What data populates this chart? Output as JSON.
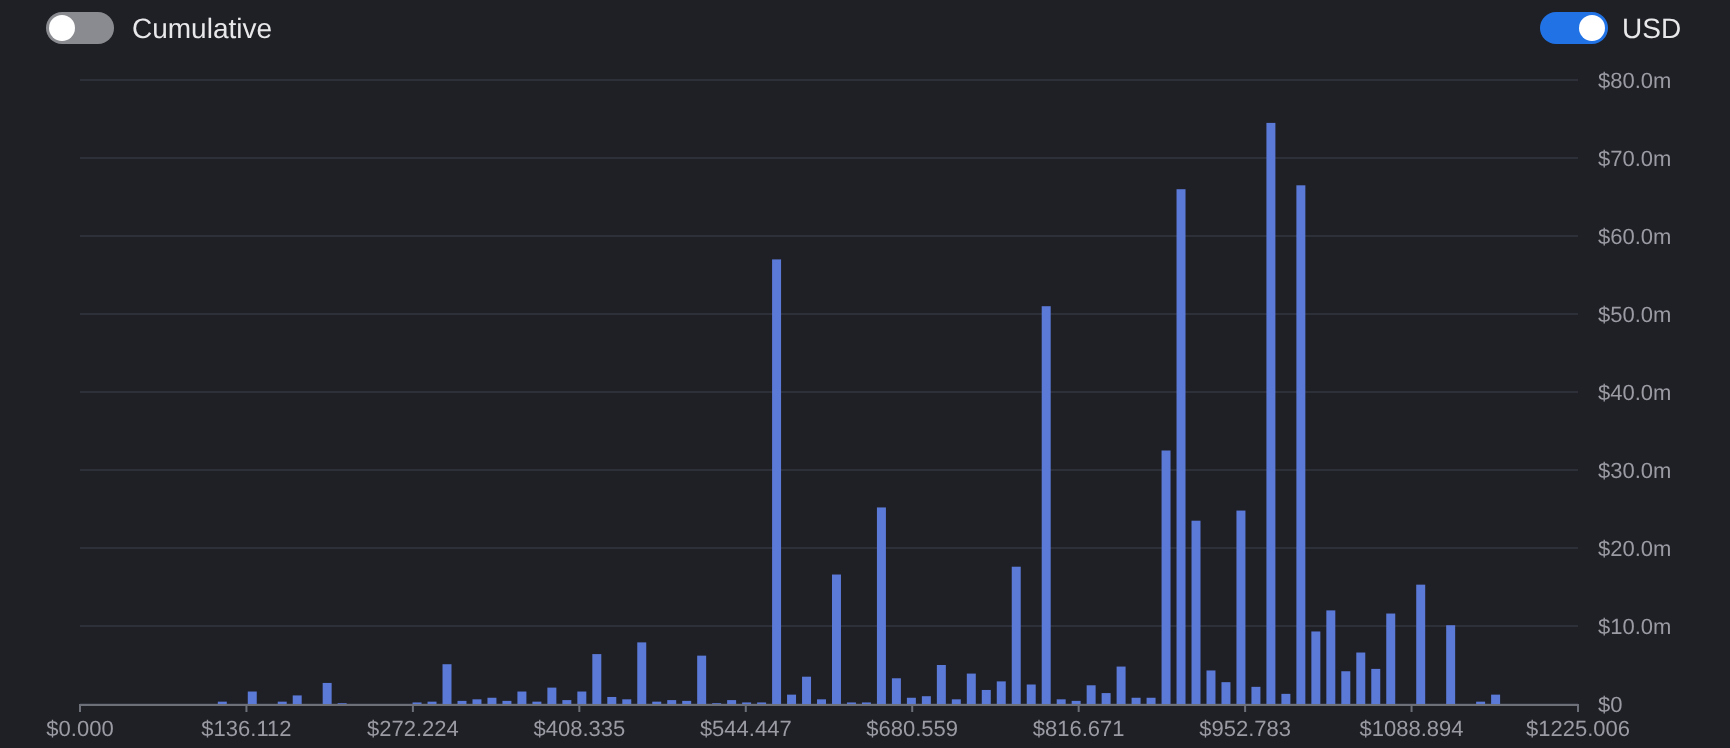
{
  "chart_data": {
    "type": "histogram",
    "bins": [
      0,
      12.25,
      24.5,
      36.75,
      49,
      61.25,
      73.5,
      85.75,
      98,
      110.25,
      122.5,
      134.75,
      147,
      159.25,
      171.5,
      183.75,
      196,
      208.25,
      220.5,
      232.75,
      245,
      257.25,
      269.5,
      281.75,
      294,
      306.25,
      318.5,
      330.75,
      343,
      355.25,
      367.5,
      379.75,
      392,
      404.25,
      416.5,
      428.75,
      441,
      453.25,
      465.5,
      477.75,
      490,
      502.25,
      514.5,
      526.75,
      539,
      551.25,
      563.5,
      575.75,
      588,
      600.25,
      612.5,
      624.75,
      637,
      649.25,
      661.5,
      673.75,
      686,
      698.25,
      710.5,
      722.75,
      735,
      747.25,
      759.5,
      771.75,
      784,
      796.25,
      808.5,
      820.75,
      833,
      845.25,
      857.5,
      869.75,
      882,
      894.25,
      906.5,
      918.75,
      931,
      943.25,
      955.5,
      967.75,
      980,
      992.25,
      1004.5,
      1016.75,
      1029,
      1041.25,
      1053.5,
      1065.75,
      1078,
      1090.25,
      1102.5,
      1114.75,
      1127,
      1139.25,
      1151.5,
      1163.75,
      1176,
      1188.25,
      1200.5,
      1212.75,
      1225.006
    ],
    "values": [
      0,
      0,
      0,
      0,
      0,
      0,
      0,
      0,
      0,
      0.3,
      0,
      1.6,
      0,
      0.3,
      1.1,
      0,
      2.7,
      0.1,
      0,
      0,
      0,
      0,
      0.2,
      0.3,
      5.1,
      0.4,
      0.6,
      0.8,
      0.4,
      1.6,
      0.3,
      2.1,
      0.5,
      1.6,
      6.4,
      0.9,
      0.6,
      7.9,
      0.3,
      0.5,
      0.4,
      6.2,
      0.1,
      0.5,
      0.2,
      0.2,
      57,
      1.2,
      3.5,
      0.6,
      16.6,
      0.2,
      0.2,
      25.2,
      3.3,
      0.8,
      1.0,
      5.0,
      0.6,
      3.9,
      1.8,
      2.9,
      17.6,
      2.5,
      51,
      0.6,
      0.4,
      2.4,
      1.4,
      4.8,
      0.8,
      0.8,
      32.5,
      66,
      23.5,
      4.3,
      2.8,
      24.8,
      2.2,
      74.5,
      1.3,
      66.5,
      9.3,
      12,
      4.2,
      6.6,
      4.5,
      11.6,
      0,
      15.3,
      0,
      10.1,
      0,
      0.3,
      1.2,
      0,
      0,
      0,
      0,
      0
    ],
    "color": "#5b79d6",
    "xlim": [
      0,
      1225.006
    ],
    "xticks": [
      {
        "value": 0,
        "label": "$0.000"
      },
      {
        "value": 136.112,
        "label": "$136.112"
      },
      {
        "value": 272.224,
        "label": "$272.224"
      },
      {
        "value": 408.335,
        "label": "$408.335"
      },
      {
        "value": 544.447,
        "label": "$544.447"
      },
      {
        "value": 680.559,
        "label": "$680.559"
      },
      {
        "value": 816.671,
        "label": "$816.671"
      },
      {
        "value": 952.783,
        "label": "$952.783"
      },
      {
        "value": 1088.894,
        "label": "$1088.894"
      },
      {
        "value": 1225.006,
        "label": "$1225.006"
      }
    ],
    "ylim": [
      0,
      80
    ],
    "yticks": [
      {
        "value": 0,
        "label": "$0"
      },
      {
        "value": 10,
        "label": "$10.0m"
      },
      {
        "value": 20,
        "label": "$20.0m"
      },
      {
        "value": 30,
        "label": "$30.0m"
      },
      {
        "value": 40,
        "label": "$40.0m"
      },
      {
        "value": 50,
        "label": "$50.0m"
      },
      {
        "value": 60,
        "label": "$60.0m"
      },
      {
        "value": 70,
        "label": "$70.0m"
      },
      {
        "value": 80,
        "label": "$80.0m"
      }
    ],
    "grid": "y",
    "annotations": [
      "Cumulative",
      "USD"
    ]
  }
}
